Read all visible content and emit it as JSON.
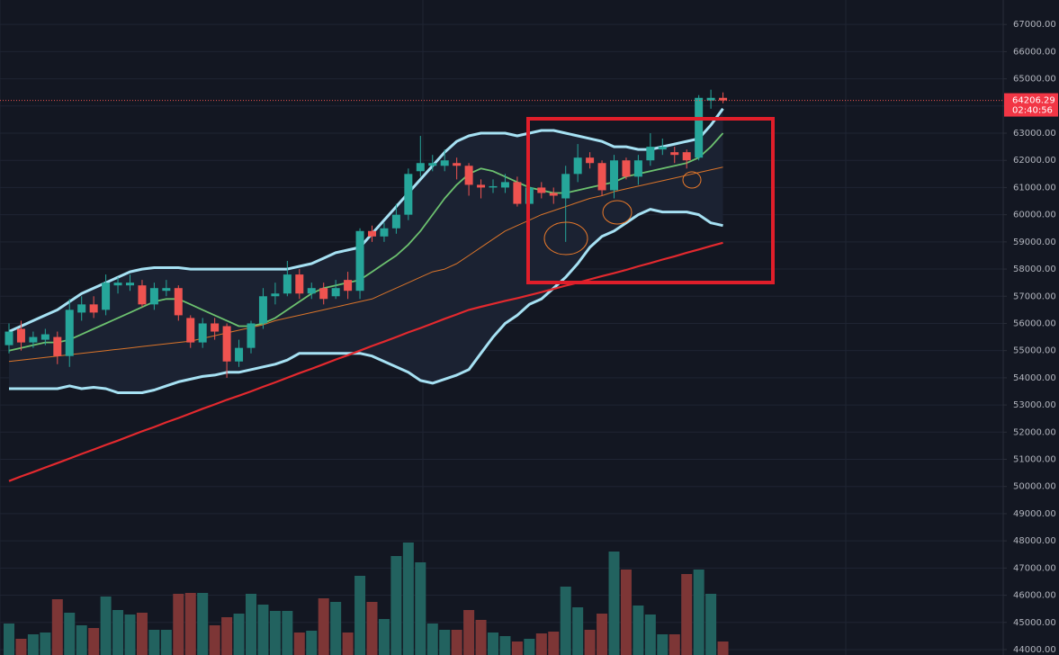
{
  "chart_data": {
    "type": "candlestick",
    "ylim": [
      43800,
      67900
    ],
    "yticks": [
      {
        "value": 44000,
        "label": "44000.00"
      },
      {
        "value": 45000,
        "label": "45000.00"
      },
      {
        "value": 46000,
        "label": "46000.00"
      },
      {
        "value": 47000,
        "label": "47000.00"
      },
      {
        "value": 48000,
        "label": "48000.00"
      },
      {
        "value": 49000,
        "label": "49000.00"
      },
      {
        "value": 50000,
        "label": "50000.00"
      },
      {
        "value": 51000,
        "label": "51000.00"
      },
      {
        "value": 52000,
        "label": "52000.00"
      },
      {
        "value": 53000,
        "label": "53000.00"
      },
      {
        "value": 54000,
        "label": "54000.00"
      },
      {
        "value": 55000,
        "label": "55000.00"
      },
      {
        "value": 56000,
        "label": "56000.00"
      },
      {
        "value": 57000,
        "label": "57000.00"
      },
      {
        "value": 58000,
        "label": "58000.00"
      },
      {
        "value": 59000,
        "label": "59000.00"
      },
      {
        "value": 60000,
        "label": "60000.00"
      },
      {
        "value": 61000,
        "label": "61000.00"
      },
      {
        "value": 62000,
        "label": "62000.00"
      },
      {
        "value": 63000,
        "label": "63000.00"
      },
      {
        "value": 64000,
        "label": "64000.00"
      },
      {
        "value": 65000,
        "label": "65000.00"
      },
      {
        "value": 66000,
        "label": "66000.00"
      },
      {
        "value": 67000,
        "label": "67000.00"
      }
    ],
    "grid": true,
    "up_color": "#26a69a",
    "down_color": "#ef5350",
    "candles": {
      "open": [
        55200,
        55800,
        55300,
        55400,
        55500,
        54800,
        56400,
        56700,
        56500,
        57400,
        57400,
        57400,
        56700,
        57200,
        57300,
        56200,
        55300,
        56000,
        55900,
        54600,
        55100,
        56000,
        57000,
        57100,
        57800,
        57100,
        57300,
        57000,
        57600,
        57200,
        59400,
        59200,
        59500,
        60000,
        61600,
        61800,
        61800,
        61900,
        61800,
        61100,
        61000,
        61000,
        61200,
        60400,
        61000,
        60800,
        60600,
        61500,
        62100,
        61900,
        60900,
        62000,
        61400,
        62000,
        62400,
        62300,
        62300,
        62100,
        64200,
        64300
      ],
      "high": [
        56000,
        56100,
        55700,
        55800,
        55700,
        56900,
        57000,
        57000,
        57800,
        57700,
        57800,
        57600,
        57500,
        57600,
        57400,
        56300,
        56200,
        56200,
        56000,
        55400,
        56100,
        57300,
        57500,
        58300,
        58000,
        57500,
        57500,
        57600,
        57900,
        59500,
        59600,
        59700,
        60400,
        61700,
        62900,
        62200,
        62400,
        62100,
        61900,
        61300,
        61300,
        61500,
        61400,
        61200,
        61200,
        61000,
        61800,
        62600,
        62300,
        62000,
        62200,
        62100,
        62200,
        63000,
        62800,
        62500,
        62400,
        64400,
        64600,
        64500
      ],
      "low": [
        54900,
        55000,
        55100,
        55200,
        54500,
        54400,
        56100,
        56200,
        56300,
        57100,
        57200,
        56600,
        56500,
        57000,
        56100,
        55100,
        55100,
        55400,
        54000,
        54400,
        54900,
        55800,
        56700,
        57000,
        56900,
        56900,
        56700,
        56900,
        56900,
        56900,
        59000,
        59000,
        59300,
        59800,
        61400,
        61600,
        61600,
        61300,
        60700,
        60600,
        60800,
        60800,
        60300,
        60200,
        60600,
        60400,
        59000,
        61200,
        61700,
        60700,
        60600,
        61300,
        61100,
        61800,
        62200,
        61900,
        61700,
        62000,
        63900,
        64100
      ],
      "close": [
        55700,
        55300,
        55500,
        55600,
        54800,
        56500,
        56700,
        56400,
        57500,
        57500,
        57500,
        56700,
        57300,
        57300,
        56300,
        55300,
        56000,
        55700,
        54600,
        55100,
        56000,
        57000,
        57100,
        57800,
        57100,
        57300,
        56900,
        57300,
        57200,
        59400,
        59200,
        59500,
        60000,
        61500,
        61900,
        61900,
        62000,
        61800,
        61100,
        61000,
        61050,
        61200,
        60400,
        61000,
        60800,
        60700,
        61500,
        62100,
        61900,
        60900,
        62000,
        61400,
        62000,
        62500,
        62500,
        62200,
        62000,
        64300,
        64300,
        64206.29
      ]
    },
    "band_fill": "#1b2232",
    "lines": [
      {
        "color": "#a6e1f3",
        "values": [
          55700,
          55900,
          56100,
          56300,
          56500,
          56800,
          57100,
          57300,
          57500,
          57700,
          57900,
          58000,
          58050,
          58050,
          58050,
          58000,
          58000,
          58000,
          58000,
          58000,
          58000,
          58000,
          58000,
          58000,
          58100,
          58200,
          58400,
          58600,
          58700,
          58800,
          59300,
          59800,
          60300,
          60800,
          61300,
          61800,
          62300,
          62700,
          62900,
          63000,
          63000,
          63000,
          62900,
          63000,
          63100,
          63100,
          63000,
          62900,
          62800,
          62700,
          62500,
          62500,
          62400,
          62400,
          62500,
          62600,
          62700,
          62800,
          63300,
          63900
        ]
      },
      {
        "color": "#6cc16f",
        "values": [
          55000,
          55100,
          55200,
          55300,
          55300,
          55400,
          55600,
          55800,
          56000,
          56200,
          56400,
          56600,
          56800,
          56900,
          56900,
          56700,
          56500,
          56300,
          56100,
          55900,
          55900,
          56000,
          56200,
          56500,
          56800,
          57100,
          57300,
          57400,
          57500,
          57600,
          57900,
          58200,
          58500,
          58900,
          59400,
          60000,
          60600,
          61100,
          61500,
          61700,
          61600,
          61400,
          61200,
          61000,
          60900,
          60800,
          60800,
          60900,
          61000,
          61100,
          61200,
          61400,
          61500,
          61600,
          61700,
          61800,
          61900,
          62100,
          62500,
          63000
        ]
      },
      {
        "color": "#a6e1f3",
        "values": [
          53600,
          53600,
          53600,
          53600,
          53600,
          53700,
          53600,
          53650,
          53600,
          53450,
          53450,
          53450,
          53550,
          53700,
          53850,
          53950,
          54050,
          54100,
          54200,
          54200,
          54300,
          54400,
          54500,
          54650,
          54900,
          54900,
          54900,
          54900,
          54900,
          54900,
          54800,
          54600,
          54400,
          54200,
          53900,
          53800,
          53950,
          54100,
          54300,
          54900,
          55500,
          56000,
          56300,
          56700,
          56900,
          57300,
          57700,
          58200,
          58800,
          59200,
          59400,
          59700,
          60000,
          60200,
          60100,
          60100,
          60100,
          60000,
          59700,
          59600
        ]
      },
      {
        "color": "#d9742a",
        "values": [
          54600,
          54650,
          54700,
          54750,
          54800,
          54850,
          54900,
          54950,
          55000,
          55050,
          55100,
          55150,
          55200,
          55250,
          55300,
          55350,
          55450,
          55550,
          55650,
          55750,
          55850,
          55950,
          56100,
          56200,
          56300,
          56400,
          56500,
          56600,
          56700,
          56800,
          56900,
          57100,
          57300,
          57500,
          57700,
          57900,
          58000,
          58200,
          58500,
          58800,
          59100,
          59400,
          59600,
          59800,
          60000,
          60150,
          60300,
          60450,
          60600,
          60700,
          60850,
          60950,
          61050,
          61150,
          61250,
          61350,
          61450,
          61550,
          61650,
          61750
        ]
      },
      {
        "color": "#e3292e",
        "values": [
          50200,
          50370,
          50530,
          50700,
          50860,
          51030,
          51200,
          51360,
          51530,
          51690,
          51860,
          52030,
          52190,
          52360,
          52520,
          52690,
          52860,
          53020,
          53190,
          53340,
          53500,
          53670,
          53830,
          54000,
          54170,
          54330,
          54500,
          54670,
          54830,
          55000,
          55170,
          55330,
          55500,
          55670,
          55830,
          56000,
          56170,
          56330,
          56500,
          56610,
          56720,
          56830,
          56930,
          57040,
          57150,
          57270,
          57390,
          57500,
          57620,
          57740,
          57850,
          57970,
          58100,
          58220,
          58350,
          58470,
          58600,
          58720,
          58850,
          58970
        ]
      }
    ],
    "volume": {
      "up_color": "#22625f",
      "down_color": "#7d3636",
      "values": [
        35,
        18,
        23,
        25,
        62,
        47,
        33,
        30,
        65,
        50,
        45,
        47,
        28,
        28,
        68,
        69,
        69,
        33,
        42,
        46,
        68,
        56,
        49,
        49,
        25,
        27,
        63,
        59,
        25,
        88,
        59,
        40,
        110,
        125,
        103,
        35,
        28,
        28,
        50,
        39,
        25,
        21,
        15,
        18,
        24,
        26,
        76,
        53,
        28,
        46,
        115,
        95,
        55,
        45,
        23,
        23,
        90,
        95,
        68,
        15
      ]
    },
    "countdown": "02:40:56"
  }
}
